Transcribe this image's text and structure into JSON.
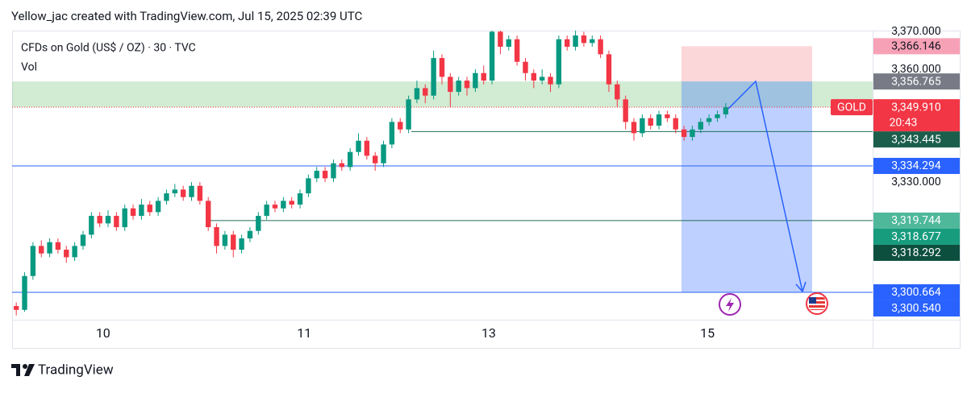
{
  "header": {
    "credit": "Yellow_jac created with TradingView.com, Jul 15, 2025 02:39 UTC"
  },
  "footer": {
    "brand": "TradingView"
  },
  "chart_data": {
    "type": "candlestick",
    "title": "CFDs on Gold (US$ / OZ) · 30 · TVC",
    "subtitle": "Vol",
    "up_color": "#089981",
    "down_color": "#f23645",
    "ohlc": [
      [
        3297,
        3298,
        3294.5,
        3296
      ],
      [
        3296,
        3306,
        3295.5,
        3305
      ],
      [
        3305,
        3314,
        3304,
        3313
      ],
      [
        3313,
        3314.5,
        3310,
        3311
      ],
      [
        3311,
        3315,
        3310,
        3314
      ],
      [
        3314,
        3315,
        3311,
        3312
      ],
      [
        3312,
        3313,
        3308.5,
        3310
      ],
      [
        3310,
        3314,
        3309,
        3313
      ],
      [
        3313,
        3317,
        3312,
        3316
      ],
      [
        3316,
        3322,
        3315,
        3321
      ],
      [
        3321,
        3322,
        3318,
        3319
      ],
      [
        3319,
        3322.5,
        3318,
        3321
      ],
      [
        3321,
        3322,
        3317,
        3318
      ],
      [
        3318,
        3324,
        3317,
        3323
      ],
      [
        3323,
        3324,
        3320,
        3321
      ],
      [
        3321,
        3325.5,
        3320,
        3324
      ],
      [
        3324,
        3325,
        3321,
        3322
      ],
      [
        3322,
        3326,
        3321,
        3325
      ],
      [
        3325,
        3328,
        3324,
        3327
      ],
      [
        3327,
        3329.5,
        3326,
        3328
      ],
      [
        3328,
        3329,
        3325,
        3326
      ],
      [
        3326,
        3330,
        3325,
        3329
      ],
      [
        3329,
        3330,
        3324,
        3325
      ],
      [
        3325,
        3326,
        3317,
        3318
      ],
      [
        3318,
        3319,
        3311,
        3313
      ],
      [
        3313,
        3317,
        3312,
        3316
      ],
      [
        3316,
        3317,
        3310,
        3312
      ],
      [
        3312,
        3316,
        3311,
        3315
      ],
      [
        3315,
        3318,
        3314,
        3317
      ],
      [
        3317,
        3322,
        3316,
        3321
      ],
      [
        3321,
        3325,
        3320,
        3324
      ],
      [
        3324,
        3325,
        3322,
        3323
      ],
      [
        3323,
        3326,
        3322,
        3325
      ],
      [
        3325,
        3326,
        3323,
        3324
      ],
      [
        3324,
        3328,
        3323,
        3327
      ],
      [
        3327,
        3332,
        3326,
        3331
      ],
      [
        3331,
        3334,
        3330,
        3333
      ],
      [
        3333,
        3334,
        3330,
        3331
      ],
      [
        3331,
        3336,
        3330,
        3335
      ],
      [
        3335,
        3336,
        3333,
        3334
      ],
      [
        3334,
        3339,
        3333,
        3338
      ],
      [
        3338,
        3343,
        3337,
        3341
      ],
      [
        3341,
        3342,
        3336,
        3337
      ],
      [
        3337,
        3338,
        3333,
        3335
      ],
      [
        3335,
        3341,
        3334,
        3340
      ],
      [
        3340,
        3347,
        3339,
        3346
      ],
      [
        3346,
        3347,
        3343,
        3344
      ],
      [
        3344,
        3353,
        3343,
        3352
      ],
      [
        3352,
        3357,
        3351,
        3355
      ],
      [
        3355,
        3356,
        3351,
        3353
      ],
      [
        3353,
        3365,
        3352,
        3363
      ],
      [
        3363,
        3364,
        3356,
        3358
      ],
      [
        3358,
        3359,
        3350,
        3354
      ],
      [
        3354,
        3358,
        3353,
        3357
      ],
      [
        3357,
        3358,
        3353,
        3355
      ],
      [
        3355,
        3360,
        3354,
        3359
      ],
      [
        3359,
        3361,
        3356,
        3357
      ],
      [
        3357,
        3370.3,
        3356,
        3370
      ],
      [
        3370,
        3370.3,
        3364,
        3366
      ],
      [
        3366,
        3369,
        3365,
        3368
      ],
      [
        3368,
        3369,
        3361,
        3362
      ],
      [
        3362,
        3363,
        3357,
        3359
      ],
      [
        3359,
        3360,
        3355,
        3357
      ],
      [
        3357,
        3360,
        3356,
        3358
      ],
      [
        3358,
        3359,
        3354,
        3356
      ],
      [
        3356,
        3369,
        3355,
        3368
      ],
      [
        3368,
        3369,
        3365,
        3366
      ],
      [
        3366,
        3370.3,
        3365,
        3369
      ],
      [
        3369,
        3370,
        3366,
        3367
      ],
      [
        3367,
        3369,
        3366,
        3368
      ],
      [
        3368,
        3369,
        3363,
        3364
      ],
      [
        3364,
        3365,
        3354,
        3356
      ],
      [
        3356,
        3357,
        3350,
        3352
      ],
      [
        3352,
        3353,
        3344,
        3346
      ],
      [
        3346,
        3347,
        3341,
        3343
      ],
      [
        3343,
        3348,
        3342,
        3347
      ],
      [
        3347,
        3348,
        3344,
        3345
      ],
      [
        3345,
        3349,
        3344,
        3348
      ],
      [
        3348,
        3349,
        3346,
        3347
      ],
      [
        3347,
        3348,
        3343,
        3344
      ],
      [
        3344,
        3345,
        3341,
        3342
      ],
      [
        3342,
        3345,
        3341,
        3344
      ],
      [
        3344,
        3347,
        3343,
        3346
      ],
      [
        3346,
        3348,
        3345,
        3347
      ],
      [
        3347,
        3349,
        3346,
        3348
      ],
      [
        3348,
        3351,
        3347,
        3349.91
      ]
    ],
    "xlim": [
      -0.5,
      102.6
    ],
    "xticks": [
      {
        "value": 10.4,
        "label": "10"
      },
      {
        "value": 34.5,
        "label": "11"
      },
      {
        "value": 56.6,
        "label": "13"
      },
      {
        "value": 82.8,
        "label": "15"
      }
    ],
    "ylim": [
      3293.8,
      3370.3
    ],
    "yticks": [
      {
        "value": 3370,
        "label": "3,370.000"
      },
      {
        "value": 3360,
        "label": "3,360.000"
      },
      {
        "value": 3330,
        "label": "3,330.000"
      }
    ],
    "symbol_tag": "GOLD",
    "countdown": "20:43",
    "current_price": 3349.91,
    "current_color": "#f23645",
    "zones": [
      {
        "from": 3349.91,
        "to": 3356.765,
        "color": "rgba(76,175,80,0.25)"
      },
      {
        "from": 3356.765,
        "to": 3366.146,
        "color": "rgba(242,54,69,0.2)"
      },
      {
        "from": 3300.664,
        "to": 3356.765,
        "color": "rgba(41,98,255,0.3)"
      }
    ],
    "lines": [
      {
        "value": 3334.294,
        "color": "#2962ff"
      },
      {
        "value": 3300.664,
        "color": "#2962ff"
      },
      {
        "value": 3319.744,
        "color": "#1e6e5a"
      },
      {
        "value": 3343.445,
        "color": "#1e6e5a"
      }
    ],
    "price_labels": [
      {
        "value": 3366.146,
        "label": "3,366.146",
        "color": "#f7a1b6",
        "text_color": "#131722"
      },
      {
        "value": 3356.765,
        "label": "3,356.765",
        "color": "#787b86",
        "text_color": "#ffffff"
      },
      {
        "value": 3349.91,
        "label": "3,349.910",
        "color": "#f23645",
        "text_color": "#ffffff"
      },
      {
        "value": 3343.445,
        "label": "3,343.445",
        "color": "#1b5e4b",
        "text_color": "#ffffff"
      },
      {
        "value": 3334.294,
        "label": "3,334.294",
        "color": "#2962ff",
        "text_color": "#ffffff"
      },
      {
        "value": 3319.744,
        "label": "3,319.744",
        "color": "#4fb89b",
        "text_color": "#ffffff"
      },
      {
        "value": 3318.677,
        "label": "3,318.677",
        "color": "#179c7e",
        "text_color": "#ffffff"
      },
      {
        "value": 3318.292,
        "label": "3,318.292",
        "color": "#0d4f3f",
        "text_color": "#ffffff"
      },
      {
        "value": 3300.664,
        "label": "3,300.664",
        "color": "#2962ff",
        "text_color": "#ffffff"
      },
      {
        "value": 3300.54,
        "label": "3,300.540",
        "color": "#2962ff",
        "text_color": "#ffffff"
      }
    ]
  }
}
